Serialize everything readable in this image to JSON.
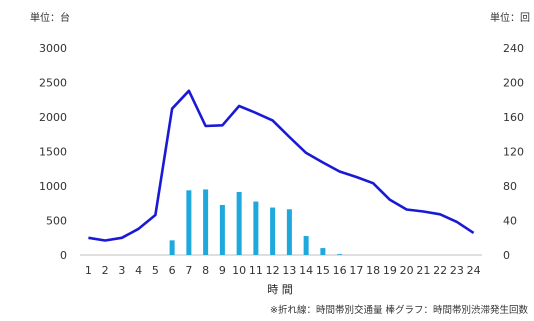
{
  "chart_data": {
    "type": "bar",
    "left_unit": "単位：台",
    "right_unit": "単位：回",
    "xlabel": "時 間",
    "note": "※折れ線：時間帯別交通量 棒グラフ：時間帯別渋滞発生回数",
    "categories": [
      "1",
      "2",
      "3",
      "4",
      "5",
      "6",
      "7",
      "8",
      "9",
      "10",
      "11",
      "12",
      "13",
      "14",
      "15",
      "16",
      "17",
      "18",
      "19",
      "20",
      "21",
      "22",
      "23",
      "24"
    ],
    "left_axis": {
      "min": 0,
      "max": 3000,
      "ticks": [
        "0",
        "500",
        "1000",
        "1500",
        "2000",
        "2500",
        "3000"
      ]
    },
    "right_axis": {
      "min": 0,
      "max": 240,
      "ticks": [
        "0",
        "40",
        "80",
        "120",
        "160",
        "200",
        "240"
      ]
    },
    "grid": false,
    "series": [
      {
        "kind": "line",
        "axis": "left",
        "color": "#1a1ad6",
        "values": [
          250,
          210,
          250,
          380,
          580,
          2120,
          2380,
          1870,
          1880,
          2160,
          2060,
          1950,
          1710,
          1480,
          1340,
          1210,
          1130,
          1040,
          800,
          660,
          630,
          590,
          480,
          320
        ]
      },
      {
        "kind": "bar",
        "axis": "right",
        "color": "#1fa8dc",
        "values": [
          0,
          0,
          0,
          0,
          0,
          17,
          75,
          76,
          58,
          73,
          62,
          55,
          53,
          22,
          8,
          1,
          0,
          0,
          0,
          0,
          0,
          0,
          0,
          0
        ]
      }
    ]
  }
}
